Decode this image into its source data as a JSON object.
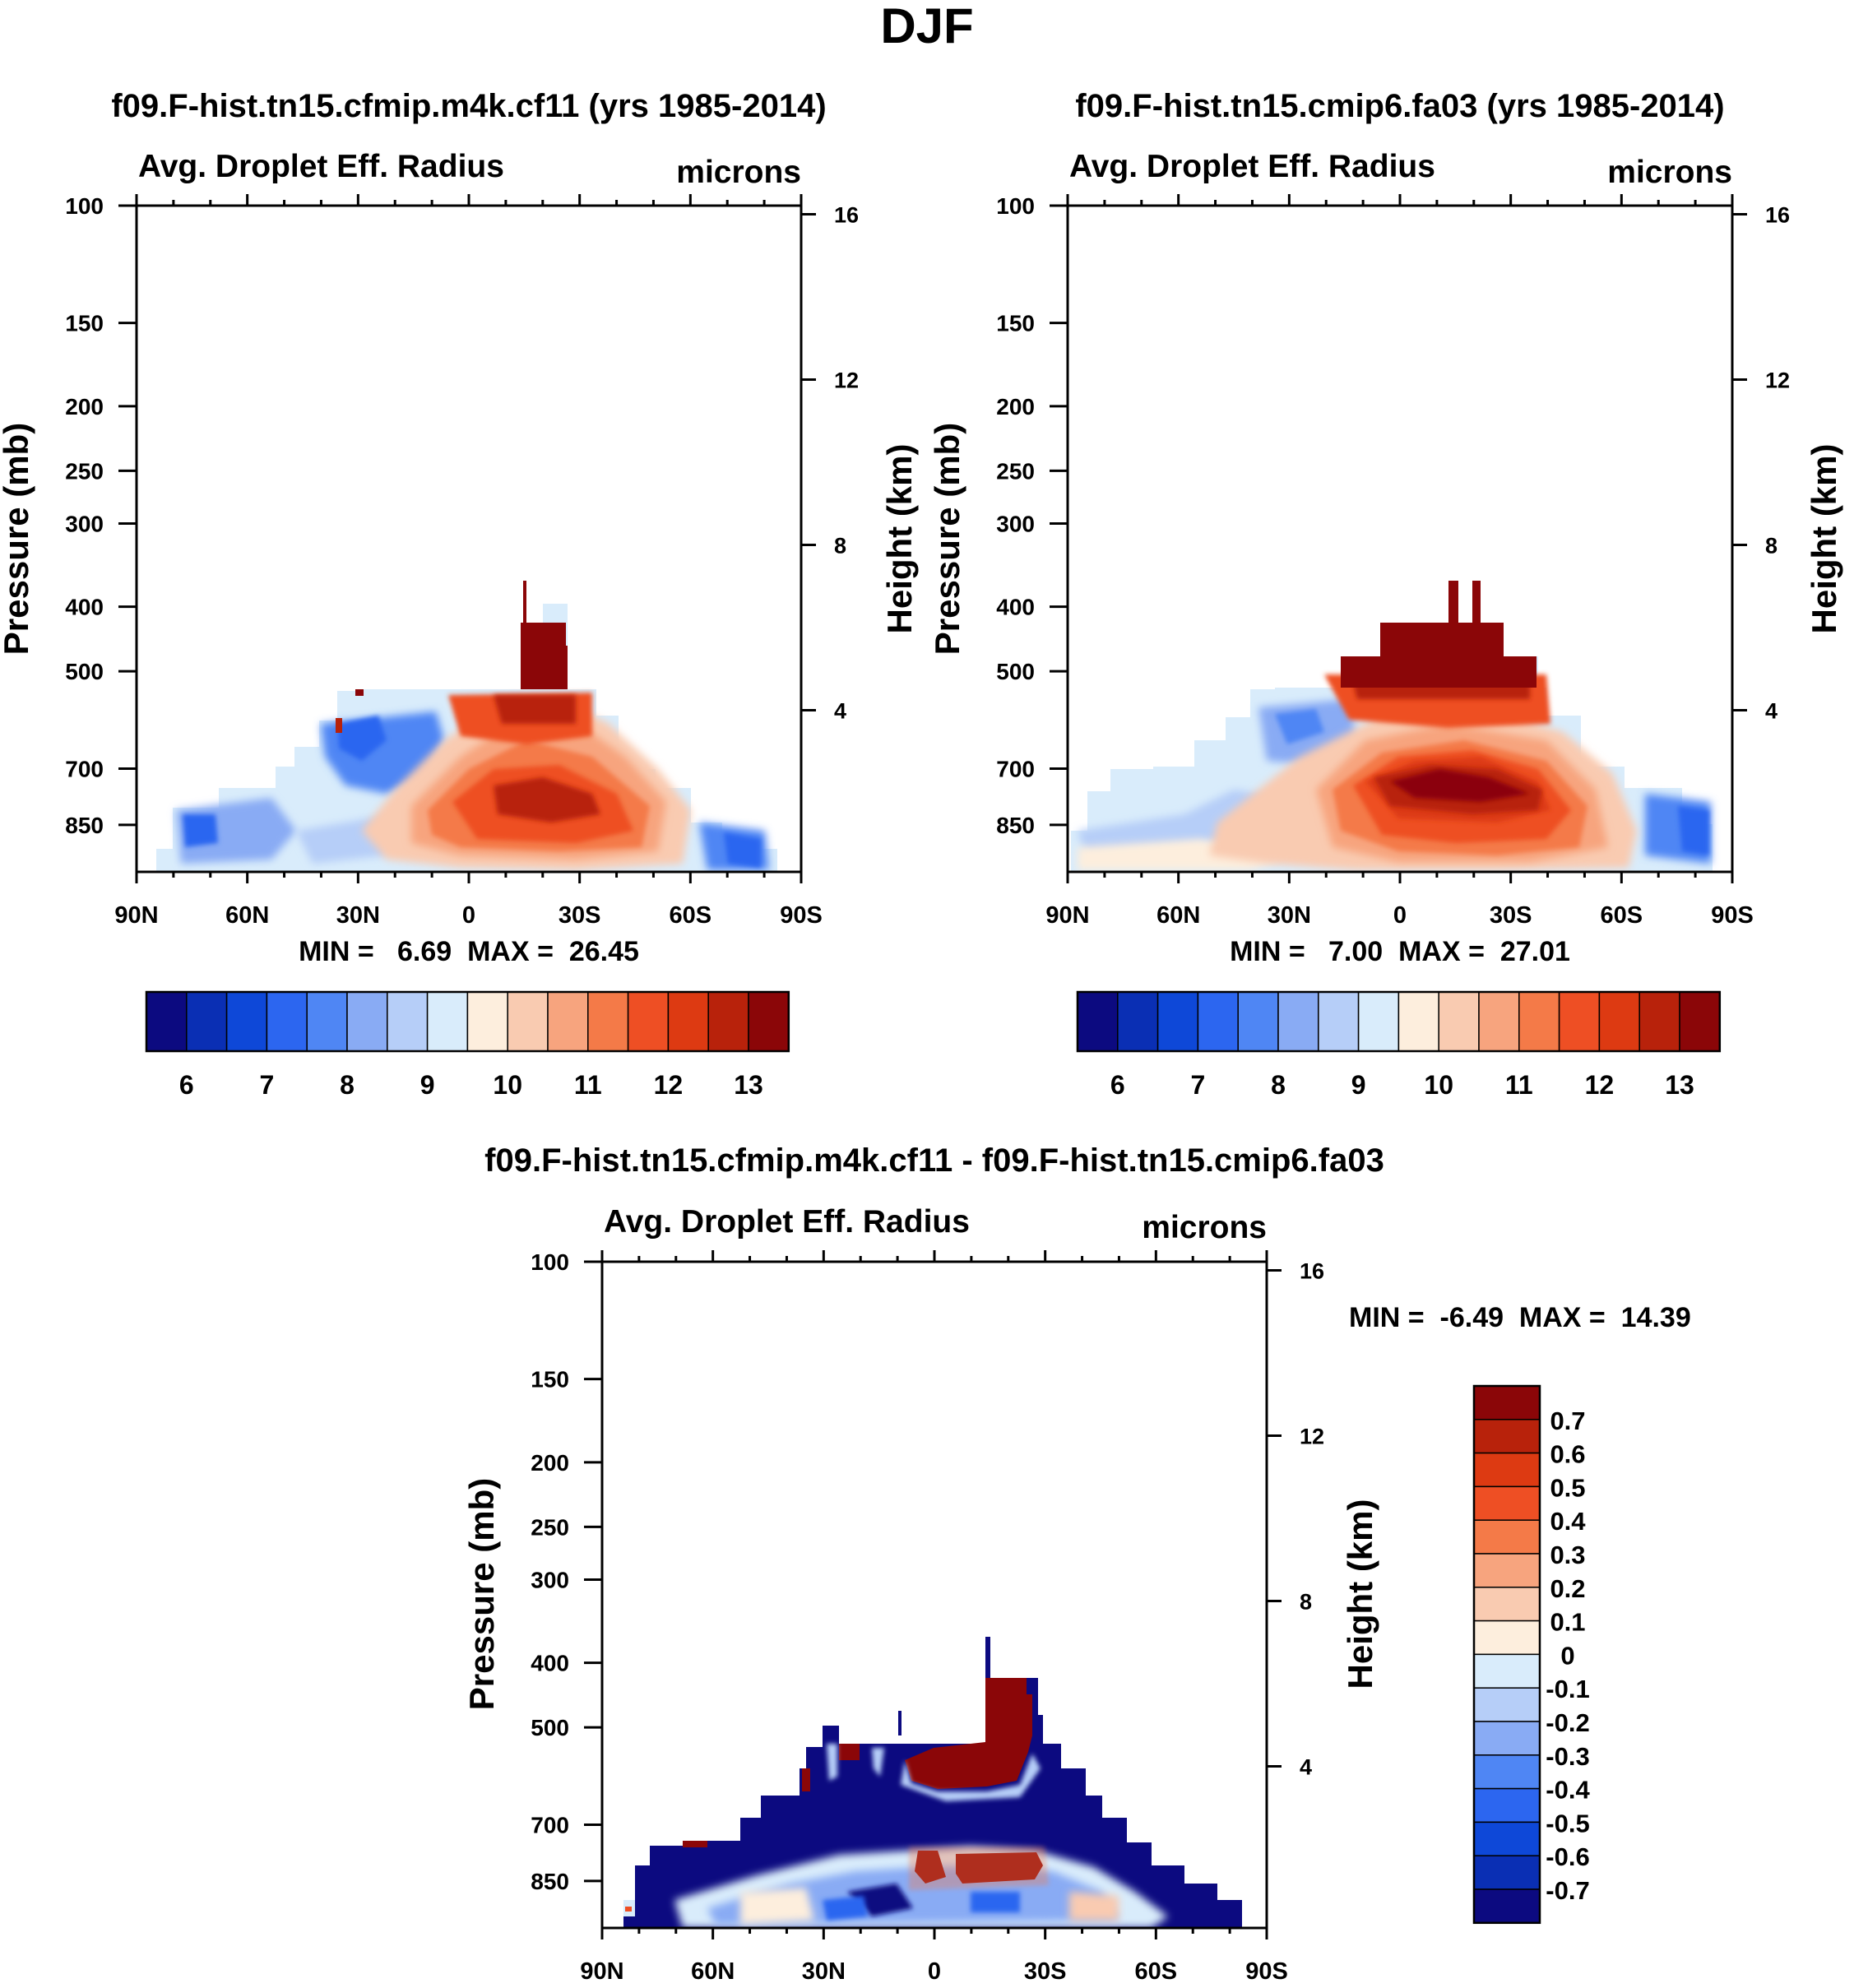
{
  "figure_title": "DJF",
  "colors": {
    "level_colors": [
      "#0c0a80",
      "#0a2fb4",
      "#0e48d8",
      "#2c66f0",
      "#4f86f4",
      "#89abf4",
      "#b6cef8",
      "#d9ecfb",
      "#fdeedd",
      "#f9cbb1",
      "#f7a47e",
      "#f47a48",
      "#ee4f24",
      "#dd3a12",
      "#b8220b",
      "#8b0608"
    ],
    "diff_colors": [
      "#0c0a80",
      "#0a2fb4",
      "#0e48d8",
      "#2c66f0",
      "#4f86f4",
      "#89abf4",
      "#b6cef8",
      "#d9ecfb",
      "#fdeedd",
      "#f9cbb1",
      "#f7a47e",
      "#f47a48",
      "#ee4f24",
      "#dd3a12",
      "#b8220b",
      "#8b0608"
    ]
  },
  "chart_data": [
    {
      "type": "heatmap",
      "title": "f09.F-hist.tn15.cfmip.m4k.cf11 (yrs 1985-2014)",
      "left_subtitle": "Avg. Droplet Eff. Radius",
      "right_subtitle": "microns",
      "ylabel": "Pressure (mb)",
      "ylabel_right": "Height (km)",
      "x_ticks": [
        "90N",
        "60N",
        "30N",
        "0",
        "30S",
        "60S",
        "90S"
      ],
      "y_ticks": [
        "100",
        "150",
        "200",
        "250",
        "300",
        "400",
        "500",
        "700",
        "850"
      ],
      "y2_ticks": [
        "16",
        "12",
        "8",
        "4"
      ],
      "xlim": [
        90,
        -90
      ],
      "ylim": [
        100,
        1000
      ],
      "min_max": "MIN =   6.69  MAX =  26.45",
      "colorbar_labels": [
        "6",
        "7",
        "8",
        "9",
        "10",
        "11",
        "12",
        "13"
      ],
      "levels": [
        5.5,
        6,
        6.5,
        7,
        7.5,
        8,
        8.5,
        9,
        9.5,
        10,
        10.5,
        11,
        11.5,
        12,
        12.5,
        13,
        13.5
      ]
    },
    {
      "type": "heatmap",
      "title": "f09.F-hist.tn15.cmip6.fa03 (yrs 1985-2014)",
      "left_subtitle": "Avg. Droplet Eff. Radius",
      "right_subtitle": "microns",
      "ylabel": "Pressure (mb)",
      "ylabel_right": "Height (km)",
      "x_ticks": [
        "90N",
        "60N",
        "30N",
        "0",
        "30S",
        "60S",
        "90S"
      ],
      "y_ticks": [
        "100",
        "150",
        "200",
        "250",
        "300",
        "400",
        "500",
        "700",
        "850"
      ],
      "y2_ticks": [
        "16",
        "12",
        "8",
        "4"
      ],
      "xlim": [
        90,
        -90
      ],
      "ylim": [
        100,
        1000
      ],
      "min_max": "MIN =   7.00  MAX =  27.01",
      "colorbar_labels": [
        "6",
        "7",
        "8",
        "9",
        "10",
        "11",
        "12",
        "13"
      ],
      "levels": [
        5.5,
        6,
        6.5,
        7,
        7.5,
        8,
        8.5,
        9,
        9.5,
        10,
        10.5,
        11,
        11.5,
        12,
        12.5,
        13,
        13.5
      ]
    },
    {
      "type": "heatmap",
      "title": "f09.F-hist.tn15.cfmip.m4k.cf11 - f09.F-hist.tn15.cmip6.fa03",
      "left_subtitle": "Avg. Droplet Eff. Radius",
      "right_subtitle": "microns",
      "ylabel": "Pressure (mb)",
      "ylabel_right": "Height (km)",
      "x_ticks": [
        "90N",
        "60N",
        "30N",
        "0",
        "30S",
        "60S",
        "90S"
      ],
      "y_ticks": [
        "100",
        "150",
        "200",
        "250",
        "300",
        "400",
        "500",
        "700",
        "850"
      ],
      "y2_ticks": [
        "16",
        "12",
        "8",
        "4"
      ],
      "xlim": [
        90,
        -90
      ],
      "ylim": [
        100,
        1000
      ],
      "min_max": "MIN =  -6.49  MAX =  14.39",
      "colorbar_labels": [
        "0.7",
        "0.6",
        "0.5",
        "0.4",
        "0.3",
        "0.2",
        "0.1",
        "0",
        "-0.1",
        "-0.2",
        "-0.3",
        "-0.4",
        "-0.5",
        "-0.6",
        "-0.7"
      ],
      "levels": [
        -0.75,
        -0.7,
        -0.6,
        -0.5,
        -0.4,
        -0.3,
        -0.2,
        -0.1,
        0,
        0.1,
        0.2,
        0.3,
        0.4,
        0.5,
        0.6,
        0.7,
        0.75
      ]
    }
  ]
}
